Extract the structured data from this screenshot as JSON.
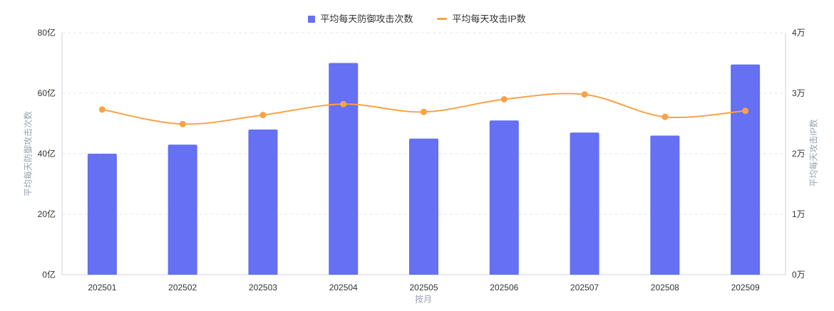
{
  "legend": {
    "items": [
      {
        "label": "平均每天防御攻击次数",
        "marker": "square",
        "color": "#6570f2"
      },
      {
        "label": "平均每天攻击IP数",
        "marker": "dash",
        "color": "#faa245"
      }
    ]
  },
  "chart_data": {
    "type": "bar+line combo, dual y-axis",
    "categories": [
      "202501",
      "202502",
      "202503",
      "202504",
      "202505",
      "202506",
      "202507",
      "202508",
      "202509"
    ],
    "series": [
      {
        "name": "平均每天防御攻击次数",
        "type": "bar",
        "axis": "left",
        "unit": "亿",
        "color": "#6570f2",
        "values": [
          40,
          43,
          48,
          70,
          45,
          51,
          47,
          46,
          69.5
        ]
      },
      {
        "name": "平均每天攻击IP数",
        "type": "line",
        "axis": "right",
        "unit": "万",
        "color": "#faa245",
        "smooth": true,
        "values": [
          2.73,
          2.49,
          2.64,
          2.82,
          2.69,
          2.9,
          2.98,
          2.61,
          2.71
        ]
      }
    ],
    "left_axis": {
      "name": "平均每天防御攻击次数",
      "min": 0,
      "max": 80,
      "ticks": [
        "0亿",
        "20亿",
        "40亿",
        "60亿",
        "80亿"
      ]
    },
    "right_axis": {
      "name": "平均每天攻击IP数",
      "min": 0,
      "max": 4,
      "ticks": [
        "0万",
        "1万",
        "2万",
        "3万",
        "4万"
      ]
    },
    "x_axis": {
      "name": "按月"
    },
    "grid": true,
    "legend_position": "top-center"
  },
  "colors": {
    "bar": "#6570f2",
    "line": "#faa245",
    "grid_line": "#e4e7ed",
    "axis_line": "#ccd3e0",
    "tick_label": "#333333",
    "axis_title": "#9aa3b0",
    "background": "#ffffff"
  }
}
